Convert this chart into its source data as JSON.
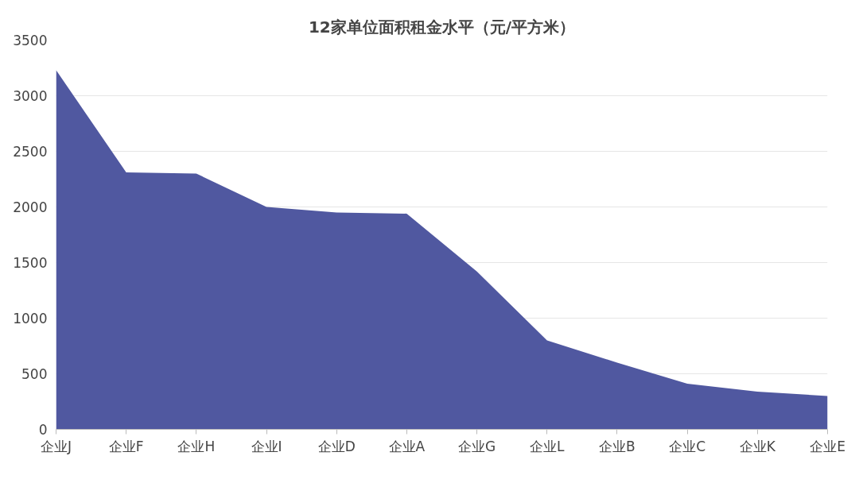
{
  "chart_data": {
    "type": "area",
    "title": "12家单位面积租金水平（元/平方米）",
    "categories": [
      "企业J",
      "企业F",
      "企业H",
      "企业I",
      "企业D",
      "企业A",
      "企业G",
      "企业L",
      "企业B",
      "企业C",
      "企业K",
      "企业E"
    ],
    "series": [
      {
        "color": "#5058a0",
        "values": [
          3230,
          2310,
          2300,
          2000,
          1950,
          1940,
          1420,
          800,
          600,
          410,
          340,
          300
        ]
      }
    ],
    "ylim": [
      0,
      3500
    ],
    "yticks": [
      0,
      500,
      1000,
      1500,
      2000,
      2500,
      3000,
      3500
    ],
    "grid": "y"
  }
}
